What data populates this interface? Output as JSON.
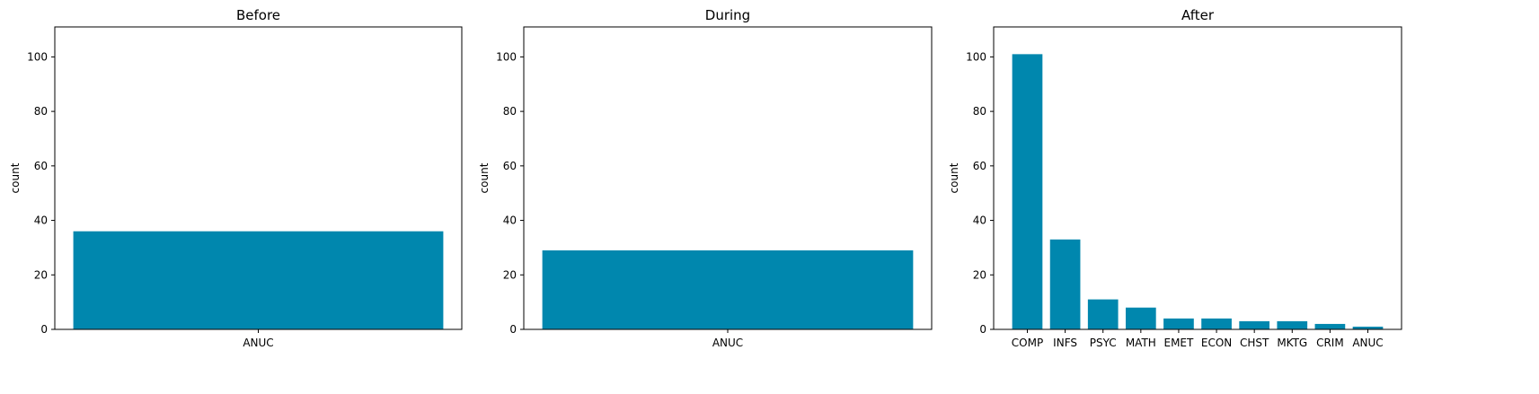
{
  "chart_data": [
    {
      "type": "bar",
      "title": "Before",
      "xlabel": "",
      "ylabel": "count",
      "ylim": [
        0,
        111
      ],
      "yticks": [
        0,
        20,
        40,
        60,
        80,
        100
      ],
      "categories": [
        "ANUC"
      ],
      "values": [
        36
      ],
      "color": "#0087ae"
    },
    {
      "type": "bar",
      "title": "During",
      "xlabel": "",
      "ylabel": "count",
      "ylim": [
        0,
        111
      ],
      "yticks": [
        0,
        20,
        40,
        60,
        80,
        100
      ],
      "categories": [
        "ANUC"
      ],
      "values": [
        29
      ],
      "color": "#0087ae"
    },
    {
      "type": "bar",
      "title": "After",
      "xlabel": "",
      "ylabel": "count",
      "ylim": [
        0,
        111
      ],
      "yticks": [
        0,
        20,
        40,
        60,
        80,
        100
      ],
      "categories": [
        "COMP",
        "INFS",
        "PSYC",
        "MATH",
        "EMET",
        "ECON",
        "CHST",
        "MKTG",
        "CRIM",
        "ANUC"
      ],
      "values": [
        101,
        33,
        11,
        8,
        4,
        4,
        3,
        3,
        2,
        1
      ],
      "color": "#0087ae"
    }
  ]
}
